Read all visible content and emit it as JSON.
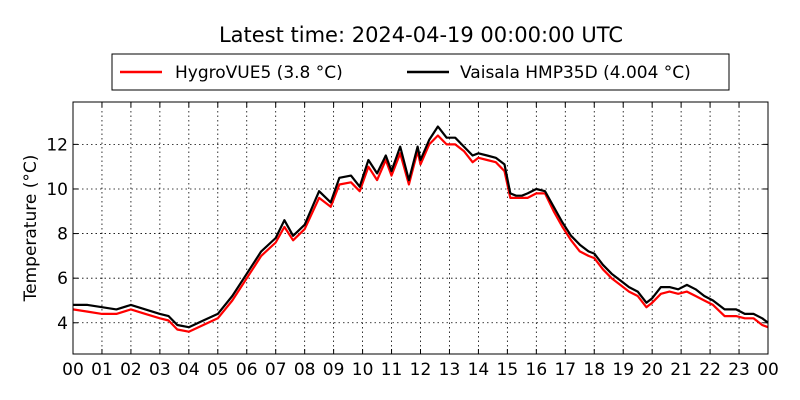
{
  "chart_data": {
    "type": "line",
    "title": "Latest time: 2024-04-19 00:00:00 UTC",
    "xlabel": "",
    "ylabel": "Temperature (°C)",
    "x_unit": "hour of day (UTC)",
    "xlim": [
      0,
      24
    ],
    "ylim": [
      2.6,
      13.9
    ],
    "x_ticks": [
      0,
      1,
      2,
      3,
      4,
      5,
      6,
      7,
      8,
      9,
      10,
      11,
      12,
      13,
      14,
      15,
      16,
      17,
      18,
      19,
      20,
      21,
      22,
      23,
      24
    ],
    "x_tick_labels": [
      "00",
      "01",
      "02",
      "03",
      "04",
      "05",
      "06",
      "07",
      "08",
      "09",
      "10",
      "11",
      "12",
      "13",
      "14",
      "15",
      "16",
      "17",
      "18",
      "19",
      "20",
      "21",
      "22",
      "23",
      "00"
    ],
    "y_ticks": [
      4,
      6,
      8,
      10,
      12
    ],
    "y_tick_labels": [
      "4",
      "6",
      "8",
      "10",
      "12"
    ],
    "grid": true,
    "legend_position": "top-center",
    "series": [
      {
        "name": "HygroVUE5 (3.8 °C)",
        "color": "#ff0000",
        "x": [
          0,
          0.5,
          1,
          1.5,
          2,
          2.5,
          3,
          3.3,
          3.6,
          4,
          4.5,
          5,
          5.5,
          6,
          6.5,
          7,
          7.3,
          7.6,
          8,
          8.5,
          8.9,
          9.2,
          9.6,
          9.9,
          10.2,
          10.5,
          10.8,
          11,
          11.3,
          11.6,
          11.9,
          12,
          12.3,
          12.6,
          12.9,
          13.2,
          13.5,
          13.8,
          14,
          14.3,
          14.6,
          14.9,
          15.1,
          15.3,
          15.5,
          15.7,
          16,
          16.3,
          16.6,
          16.9,
          17.2,
          17.5,
          17.8,
          18,
          18.3,
          18.6,
          18.9,
          19.2,
          19.5,
          19.8,
          20,
          20.3,
          20.6,
          20.9,
          21.2,
          21.5,
          21.8,
          22.1,
          22.5,
          22.9,
          23.2,
          23.5,
          23.8,
          24
        ],
        "y": [
          4.6,
          4.5,
          4.4,
          4.4,
          4.6,
          4.4,
          4.2,
          4.1,
          3.7,
          3.6,
          3.9,
          4.2,
          5.0,
          6.0,
          7.0,
          7.6,
          8.3,
          7.7,
          8.2,
          9.6,
          9.2,
          10.2,
          10.3,
          9.9,
          11.0,
          10.4,
          11.3,
          10.6,
          11.6,
          10.2,
          11.7,
          11.1,
          12.0,
          12.4,
          12.0,
          12.0,
          11.7,
          11.2,
          11.4,
          11.3,
          11.2,
          10.8,
          9.6,
          9.6,
          9.6,
          9.6,
          9.8,
          9.8,
          9.0,
          8.3,
          7.7,
          7.2,
          7.0,
          6.9,
          6.4,
          6.0,
          5.7,
          5.4,
          5.2,
          4.7,
          4.9,
          5.3,
          5.4,
          5.3,
          5.4,
          5.2,
          5.0,
          4.8,
          4.3,
          4.3,
          4.2,
          4.2,
          3.9,
          3.8
        ]
      },
      {
        "name": "Vaisala HMP35D (4.004 °C)",
        "color": "#000000",
        "x": [
          0,
          0.5,
          1,
          1.5,
          2,
          2.5,
          3,
          3.3,
          3.6,
          4,
          4.5,
          5,
          5.5,
          6,
          6.5,
          7,
          7.3,
          7.6,
          8,
          8.5,
          8.9,
          9.2,
          9.6,
          9.9,
          10.2,
          10.5,
          10.8,
          11,
          11.3,
          11.6,
          11.9,
          12,
          12.3,
          12.6,
          12.9,
          13.2,
          13.5,
          13.8,
          14,
          14.3,
          14.6,
          14.9,
          15.1,
          15.3,
          15.5,
          15.7,
          16,
          16.3,
          16.6,
          16.9,
          17.2,
          17.5,
          17.8,
          18,
          18.3,
          18.6,
          18.9,
          19.2,
          19.5,
          19.8,
          20,
          20.3,
          20.6,
          20.9,
          21.2,
          21.5,
          21.8,
          22.1,
          22.5,
          22.9,
          23.2,
          23.5,
          23.8,
          24
        ],
        "y": [
          4.8,
          4.8,
          4.7,
          4.6,
          4.8,
          4.6,
          4.4,
          4.3,
          3.9,
          3.8,
          4.1,
          4.4,
          5.2,
          6.2,
          7.2,
          7.8,
          8.6,
          7.9,
          8.4,
          9.9,
          9.4,
          10.5,
          10.6,
          10.1,
          11.3,
          10.7,
          11.5,
          10.8,
          11.9,
          10.4,
          11.9,
          11.3,
          12.2,
          12.8,
          12.3,
          12.3,
          11.9,
          11.5,
          11.6,
          11.5,
          11.4,
          11.1,
          9.8,
          9.7,
          9.7,
          9.8,
          10.0,
          9.9,
          9.2,
          8.5,
          7.9,
          7.5,
          7.2,
          7.1,
          6.6,
          6.2,
          5.9,
          5.6,
          5.4,
          4.9,
          5.1,
          5.6,
          5.6,
          5.5,
          5.7,
          5.5,
          5.2,
          5.0,
          4.6,
          4.6,
          4.4,
          4.4,
          4.2,
          4.0
        ]
      }
    ]
  }
}
